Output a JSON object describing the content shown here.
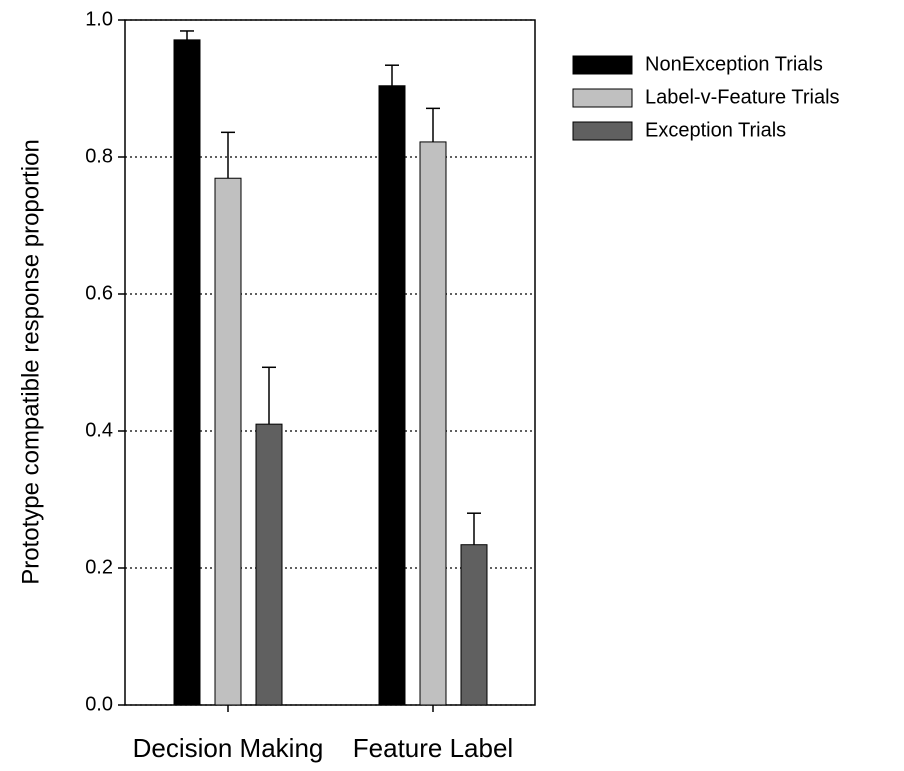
{
  "chart_data": {
    "type": "bar",
    "y_label": "Prototype compatible response proportion",
    "categories": [
      "Decision Making",
      "Feature Label"
    ],
    "series": [
      {
        "name": "NonException Trials",
        "color": "#000000",
        "values": [
          0.971,
          0.904
        ],
        "errors": [
          0.013,
          0.03
        ]
      },
      {
        "name": "Label-v-Feature Trials",
        "color": "#c0c0c0",
        "values": [
          0.769,
          0.822
        ],
        "errors": [
          0.067,
          0.049
        ]
      },
      {
        "name": "Exception Trials",
        "color": "#606060",
        "values": [
          0.41,
          0.234
        ],
        "errors": [
          0.083,
          0.046
        ]
      }
    ],
    "ylim": [
      0,
      1
    ],
    "yticks": [
      {
        "value": 0,
        "label": "0.0"
      },
      0.2,
      0.4,
      0.6,
      0.8,
      {
        "value": 1,
        "label": "1.0"
      }
    ],
    "grid": true,
    "legend": "right"
  }
}
